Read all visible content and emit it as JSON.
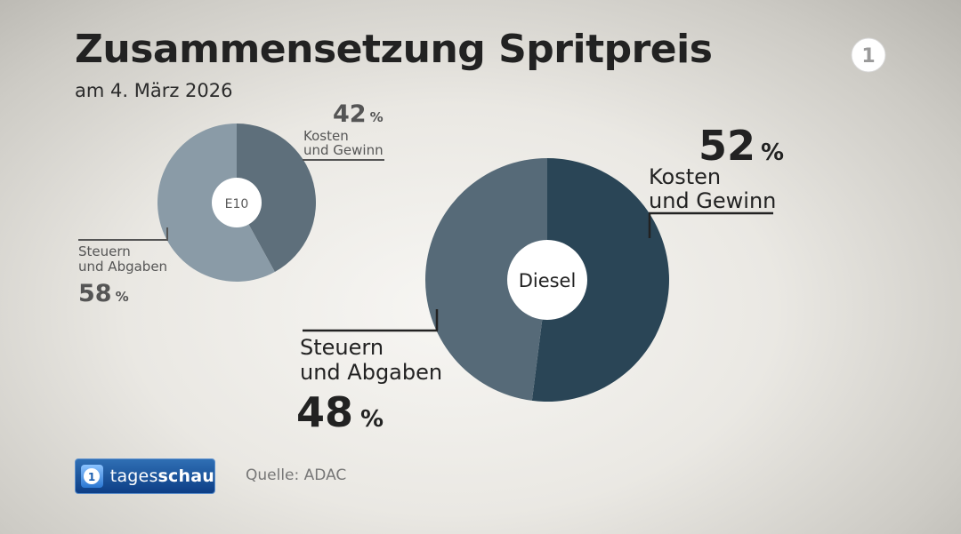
{
  "header": {
    "title": "Zusammensetzung Spritpreis",
    "subtitle": "am 4. März 2026"
  },
  "channel": {
    "logo_label": "1",
    "brand_prefix": "tages",
    "brand_suffix": "schau"
  },
  "footer": {
    "source": "Quelle: ADAC"
  },
  "colors": {
    "e10_dark": "#5e6f7b",
    "e10_light": "#8a9ba7",
    "diesel_dark": "#2a4556",
    "diesel_light": "#566a78",
    "badge_blue": "#0d3e86"
  },
  "chart_data": [
    {
      "type": "pie",
      "name": "E10",
      "center_label": "E10",
      "slices": [
        {
          "label_line1": "Kosten",
          "label_line2": "und Gewinn",
          "value": 42,
          "unit": "%"
        },
        {
          "label_line1": "Steuern",
          "label_line2": "und Abgaben",
          "value": 58,
          "unit": "%"
        }
      ]
    },
    {
      "type": "pie",
      "name": "Diesel",
      "center_label": "Diesel",
      "slices": [
        {
          "label_line1": "Kosten",
          "label_line2": "und Gewinn",
          "value": 52,
          "unit": "%"
        },
        {
          "label_line1": "Steuern",
          "label_line2": "und Abgaben",
          "value": 48,
          "unit": "%"
        }
      ]
    }
  ]
}
